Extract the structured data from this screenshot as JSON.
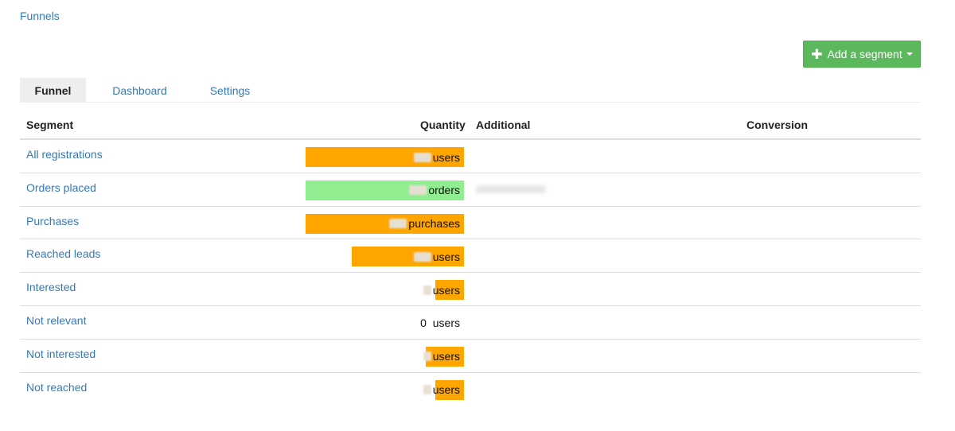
{
  "breadcrumb": "Funnels",
  "add_segment_button": {
    "plus": "✚",
    "label": "Add a segment"
  },
  "tabs": [
    {
      "label": "Funnel",
      "active": true
    },
    {
      "label": "Dashboard",
      "active": false
    },
    {
      "label": "Settings",
      "active": false
    }
  ],
  "table": {
    "headers": {
      "segment": "Segment",
      "quantity": "Quantity",
      "additional": "Additional",
      "conversion": "Conversion"
    },
    "rows": [
      {
        "segment": "All registrations",
        "unit": "users",
        "bar_fraction": 1.0,
        "bar_color": "#ffa500",
        "value_redacted": true,
        "additional_redacted": false
      },
      {
        "segment": "Orders placed",
        "unit": "orders",
        "bar_fraction": 1.0,
        "bar_color": "#90ee90",
        "value_redacted": true,
        "additional_redacted": true
      },
      {
        "segment": "Purchases",
        "unit": "purchases",
        "bar_fraction": 1.0,
        "bar_color": "#ffa500",
        "value_redacted": true,
        "additional_redacted": false
      },
      {
        "segment": "Reached leads",
        "unit": "users",
        "bar_fraction": 0.71,
        "bar_color": "#ffa500",
        "value_redacted": true,
        "additional_redacted": false
      },
      {
        "segment": "Interested",
        "unit": "users",
        "bar_fraction": 0.18,
        "bar_color": "#ffa500",
        "value_redacted": true,
        "additional_redacted": false
      },
      {
        "segment": "Not relevant",
        "unit": "users",
        "value": "0",
        "bar_fraction": 0,
        "bar_color": "#ffa500",
        "value_redacted": false,
        "additional_redacted": false
      },
      {
        "segment": "Not interested",
        "unit": "users",
        "bar_fraction": 0.24,
        "bar_color": "#ffa500",
        "value_redacted": true,
        "additional_redacted": false
      },
      {
        "segment": "Not reached",
        "unit": "users",
        "bar_fraction": 0.18,
        "bar_color": "#ffa500",
        "value_redacted": true,
        "additional_redacted": false
      }
    ]
  }
}
